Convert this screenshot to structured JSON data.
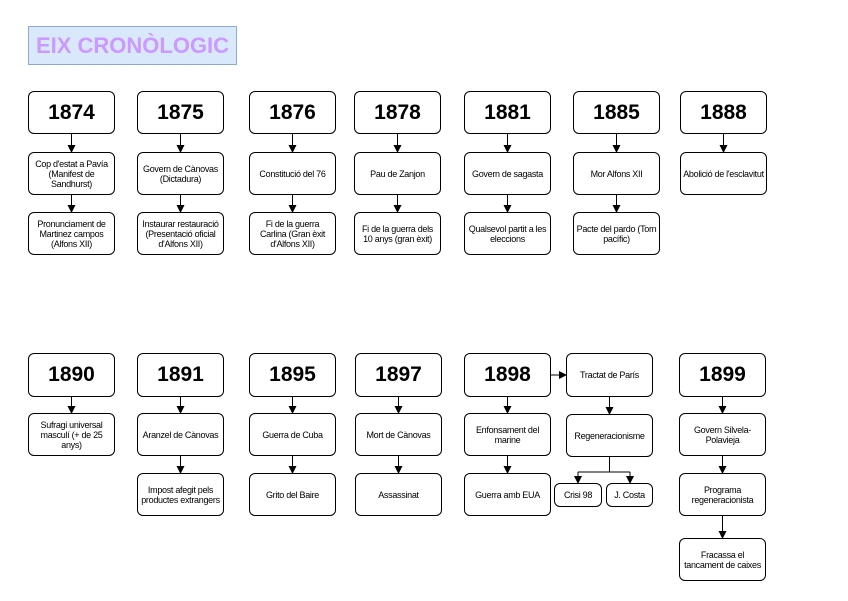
{
  "title": "EIX CRONÒLOGIC",
  "row1": [
    {
      "year": "1874",
      "events": [
        "Cop d'estat a Pavía (Manifest de Sandhurst)",
        "Pronunciament de Martinez campos (Alfons XII)"
      ]
    },
    {
      "year": "1875",
      "events": [
        "Govern de Cànovas (Dictadura)",
        "Instaurar restauració (Presentació oficial d'Alfons XII)"
      ]
    },
    {
      "year": "1876",
      "events": [
        "Constitució del 76",
        "Fi de la guerra Carlina (Gran èxit d'Alfons XII)"
      ]
    },
    {
      "year": "1878",
      "events": [
        "Pau de  Zanjon",
        "Fi de la guerra dels 10 anys (gran èxit)"
      ]
    },
    {
      "year": "1881",
      "events": [
        "Govern de sagasta",
        "Qualsevol partit a les eleccions"
      ]
    },
    {
      "year": "1885",
      "events": [
        "Mor Alfons XII",
        "Pacte del pardo (Torn pacífic)"
      ]
    },
    {
      "year": "1888",
      "events": [
        "Abolició de l'esclavitut"
      ]
    }
  ],
  "row2": [
    {
      "year": "1890",
      "events": [
        "Sufragi universal masculí (+ de 25 anys)"
      ]
    },
    {
      "year": "1891",
      "events": [
        "Aranzel de  Cànovas",
        "Impost afegit pels productes extrangers"
      ]
    },
    {
      "year": "1895",
      "events": [
        "Guerra de Cuba",
        "Grito del Baire"
      ]
    },
    {
      "year": "1897",
      "events": [
        "Mort de Cànovas",
        "Assassinat"
      ]
    },
    {
      "year": "1898",
      "events": [
        "Enfonsament del marine",
        "Guerra amb EUA"
      ]
    },
    {
      "year": "1899",
      "events": [
        "Govern Silvela-Polavieja",
        "Programa regeneracionista",
        "Fracassa el tancament de caixes"
      ]
    }
  ],
  "branch1898": {
    "treaty": "Tractat de París",
    "movement": "Regeneracionisme",
    "children": [
      "Crisi 98",
      "J. Costa"
    ]
  }
}
